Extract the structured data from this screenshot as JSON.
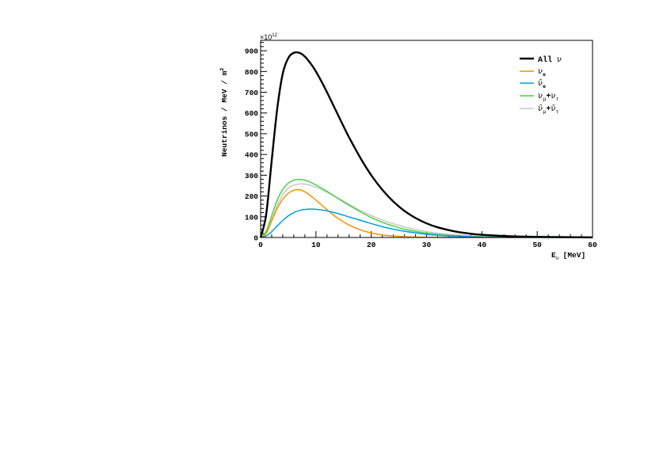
{
  "chart_data": {
    "type": "line",
    "xlabel": "E",
    "xlabel_sub": "ν",
    "xlabel_unit": "[MeV]",
    "ylabel": "Neutrinos / MeV / m",
    "ylabel_sup": "2",
    "y_multiplier_prefix": "×10",
    "y_multiplier_exp": "12",
    "xlim": [
      0,
      60
    ],
    "ylim": [
      0,
      950
    ],
    "x_ticks": [
      "0",
      "10",
      "20",
      "30",
      "40",
      "50",
      "60"
    ],
    "y_ticks": [
      "0",
      "100",
      "200",
      "300",
      "400",
      "500",
      "600",
      "700",
      "800",
      "900"
    ],
    "legend_position": "top-right",
    "series": [
      {
        "name": "All ν",
        "color": "#000000",
        "x": [
          0,
          1,
          2,
          3,
          4,
          5,
          6,
          7,
          8,
          9,
          10,
          11,
          12,
          13,
          14,
          15,
          16,
          18,
          20,
          22,
          24,
          26,
          28,
          30,
          32,
          35,
          38,
          40,
          45,
          50,
          55,
          60
        ],
        "y": [
          0,
          110,
          370,
          620,
          790,
          865,
          890,
          890,
          872,
          840,
          800,
          752,
          700,
          645,
          590,
          535,
          482,
          385,
          300,
          230,
          173,
          128,
          94,
          68,
          49,
          30,
          18,
          13,
          6,
          3,
          1.5,
          0.5
        ]
      },
      {
        "name": "ν_e",
        "color": "#f39200",
        "x": [
          0,
          1,
          2,
          3,
          4,
          5,
          6,
          7,
          8,
          9,
          10,
          11,
          12,
          13,
          14,
          15,
          16,
          18,
          20,
          22,
          24,
          26,
          28,
          30,
          32,
          35,
          40,
          45,
          50,
          55,
          60
        ],
        "y": [
          0,
          20,
          80,
          140,
          185,
          213,
          228,
          230,
          220,
          202,
          180,
          157,
          134,
          112,
          92,
          75,
          60,
          37,
          22,
          12,
          7,
          4,
          2,
          1,
          0.5,
          0.2,
          0,
          0,
          0,
          0,
          0
        ]
      },
      {
        "name": "ν̄_e",
        "color": "#009ee0",
        "x": [
          0,
          1,
          2,
          3,
          4,
          5,
          6,
          7,
          8,
          9,
          10,
          11,
          12,
          13,
          14,
          15,
          16,
          18,
          20,
          22,
          24,
          26,
          28,
          30,
          32,
          35,
          40,
          45,
          50,
          55,
          60
        ],
        "y": [
          0,
          8,
          28,
          55,
          82,
          104,
          120,
          130,
          135,
          137,
          136,
          133,
          128,
          122,
          115,
          107,
          99,
          83,
          67,
          52,
          40,
          30,
          22,
          15,
          11,
          6,
          2,
          0.5,
          0,
          0,
          0
        ]
      },
      {
        "name": "ν_μ+ν_τ",
        "color": "#4cd04a",
        "x": [
          0,
          1,
          2,
          3,
          4,
          5,
          6,
          7,
          8,
          9,
          10,
          11,
          12,
          13,
          14,
          15,
          16,
          18,
          20,
          22,
          24,
          26,
          28,
          30,
          32,
          35,
          40,
          45,
          50,
          55,
          60
        ],
        "y": [
          0,
          30,
          105,
          180,
          232,
          262,
          276,
          280,
          276,
          266,
          253,
          238,
          222,
          205,
          188,
          171,
          155,
          124,
          96,
          73,
          55,
          40,
          29,
          21,
          15,
          9,
          3.5,
          1,
          0.4,
          0.1,
          0
        ]
      },
      {
        "name": "ν̄_μ+ν̄_τ",
        "color": "#c8c8c8",
        "x": [
          0,
          1,
          2,
          3,
          4,
          5,
          6,
          7,
          8,
          9,
          10,
          11,
          12,
          13,
          14,
          15,
          16,
          18,
          20,
          22,
          24,
          26,
          28,
          30,
          32,
          35,
          40,
          45,
          50,
          55,
          60
        ],
        "y": [
          0,
          22,
          85,
          155,
          207,
          238,
          252,
          258,
          257,
          251,
          242,
          231,
          218,
          204,
          189,
          175,
          160,
          131,
          106,
          84,
          66,
          51,
          38,
          28,
          21,
          13,
          5,
          2,
          0.8,
          0.3,
          0
        ]
      }
    ]
  },
  "legend": {
    "all_label_text": "All",
    "all_label_sym": "ν",
    "nue_sym": "ν",
    "nue_sub": "e",
    "anue_sym": "ν̄",
    "anue_sub": "e",
    "numu_sym": "ν",
    "numu_sub": "μ",
    "plus": "+",
    "nutau_sym": "ν",
    "nutau_sub": "τ",
    "anumu_sym": "ν̄",
    "anumu_sub": "μ",
    "anutau_sym": "ν̄",
    "anutau_sub": "τ"
  }
}
